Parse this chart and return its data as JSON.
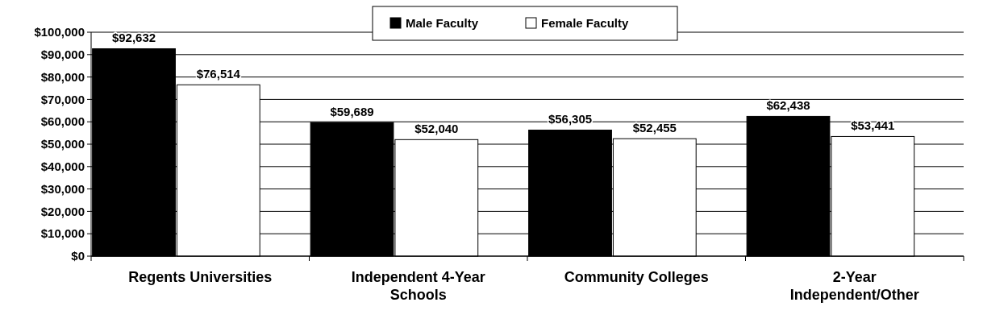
{
  "chart_data": {
    "type": "bar",
    "categories": [
      "Regents Universities",
      "Independent 4-Year Schools",
      "Community Colleges",
      "2-Year Independent/Other"
    ],
    "series": [
      {
        "name": "Male Faculty",
        "color": "#000000",
        "values": [
          92632,
          59689,
          56305,
          62438
        ]
      },
      {
        "name": "Female Faculty",
        "color": "#ffffff",
        "values": [
          76514,
          52040,
          52455,
          53441
        ]
      }
    ],
    "ylim": [
      0,
      100000
    ],
    "yticks": [
      {
        "value": 0,
        "label": "$0"
      },
      {
        "value": 10000,
        "label": "$10,000"
      },
      {
        "value": 20000,
        "label": "$20,000"
      },
      {
        "value": 30000,
        "label": "$30,000"
      },
      {
        "value": 40000,
        "label": "$40,000"
      },
      {
        "value": 50000,
        "label": "$50,000"
      },
      {
        "value": 60000,
        "label": "$60,000"
      },
      {
        "value": 70000,
        "label": "$70,000"
      },
      {
        "value": 80000,
        "label": "$80,000"
      },
      {
        "value": 90000,
        "label": "$90,000"
      },
      {
        "value": 100000,
        "label": "$100,000"
      }
    ],
    "value_labels": [
      [
        "$92,632",
        "$59,689",
        "$56,305",
        "$62,438"
      ],
      [
        "$76,514",
        "$52,040",
        "$52,455",
        "$53,441"
      ]
    ],
    "grid": "y",
    "legend": "top"
  }
}
